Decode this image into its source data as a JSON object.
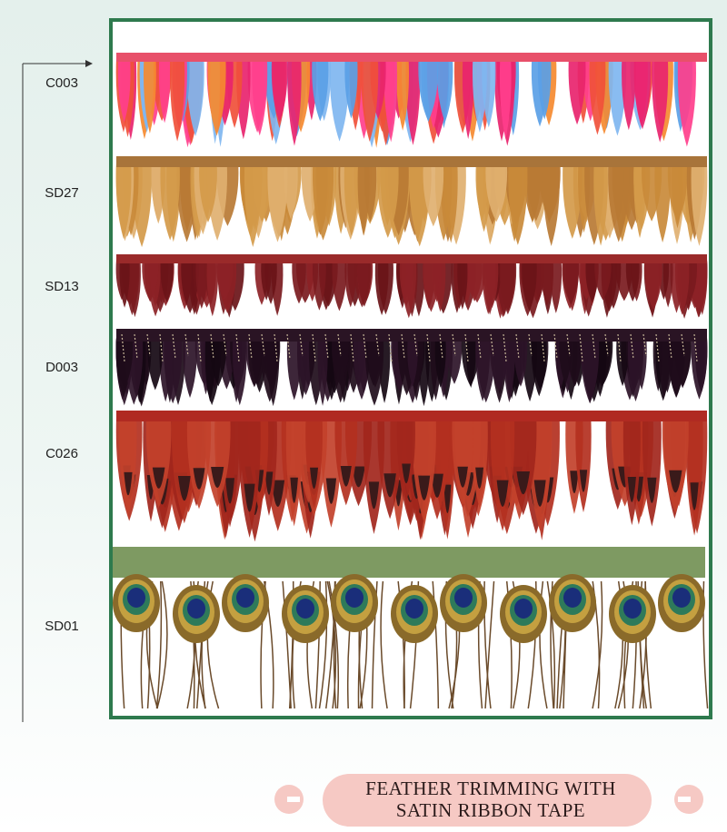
{
  "labels": [
    "C003",
    "SD27",
    "SD13",
    "D003",
    "C026",
    "SD01"
  ],
  "footer": {
    "lines": [
      "FEATHER TRIMMING WITH",
      "SATIN RIBBON TAPE"
    ]
  }
}
